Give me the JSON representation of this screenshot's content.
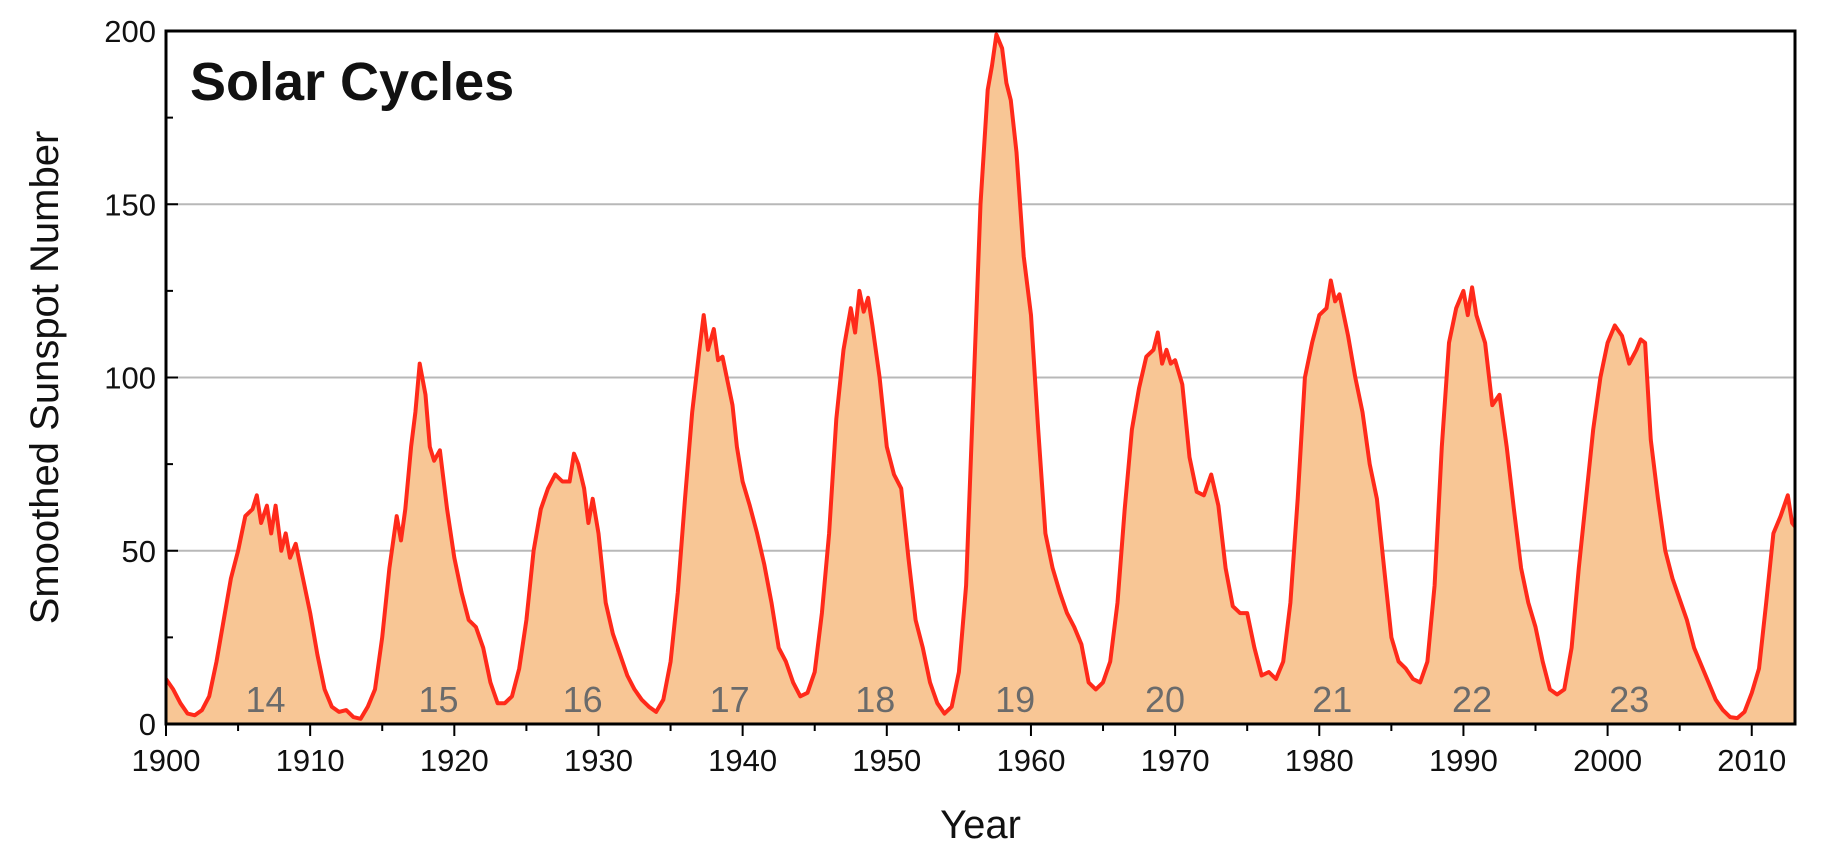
{
  "chart_data": {
    "type": "area",
    "title": "Solar Cycles",
    "xlabel": "Year",
    "ylabel": "Smoothed Sunspot Number",
    "xlim": [
      1900,
      2013
    ],
    "ylim": [
      0,
      200
    ],
    "x_ticks": [
      1900,
      1910,
      1920,
      1930,
      1940,
      1950,
      1960,
      1970,
      1980,
      1990,
      2000,
      2010
    ],
    "y_ticks": [
      0,
      50,
      100,
      150,
      200
    ],
    "grid": "horizontal",
    "line_color": "#ff2a1a",
    "fill_color": "#f8c695",
    "grid_color": "#b8b8b8",
    "cycle_labels": [
      {
        "label": "14",
        "x": 1906.9
      },
      {
        "label": "15",
        "x": 1918.9
      },
      {
        "label": "16",
        "x": 1928.9
      },
      {
        "label": "17",
        "x": 1939.1
      },
      {
        "label": "18",
        "x": 1949.2
      },
      {
        "label": "19",
        "x": 1958.9
      },
      {
        "label": "20",
        "x": 1969.3
      },
      {
        "label": "21",
        "x": 1980.9
      },
      {
        "label": "22",
        "x": 1990.6
      },
      {
        "label": "23",
        "x": 2001.5
      }
    ],
    "series": [
      {
        "values": [
          [
            1900.0,
            13
          ],
          [
            1900.5,
            10
          ],
          [
            1901.0,
            6
          ],
          [
            1901.5,
            3
          ],
          [
            1902.0,
            2.5
          ],
          [
            1902.5,
            4
          ],
          [
            1903.0,
            8
          ],
          [
            1903.5,
            18
          ],
          [
            1904.0,
            30
          ],
          [
            1904.5,
            42
          ],
          [
            1905.0,
            50
          ],
          [
            1905.5,
            60
          ],
          [
            1906.0,
            62
          ],
          [
            1906.3,
            66
          ],
          [
            1906.6,
            58
          ],
          [
            1907.0,
            63
          ],
          [
            1907.3,
            55
          ],
          [
            1907.6,
            63
          ],
          [
            1908.0,
            50
          ],
          [
            1908.3,
            55
          ],
          [
            1908.6,
            48
          ],
          [
            1909.0,
            52
          ],
          [
            1909.5,
            42
          ],
          [
            1910.0,
            32
          ],
          [
            1910.5,
            20
          ],
          [
            1911.0,
            10
          ],
          [
            1911.5,
            5
          ],
          [
            1912.0,
            3.5
          ],
          [
            1912.5,
            4
          ],
          [
            1913.0,
            2
          ],
          [
            1913.5,
            1.5
          ],
          [
            1914.0,
            5
          ],
          [
            1914.5,
            10
          ],
          [
            1915.0,
            25
          ],
          [
            1915.5,
            45
          ],
          [
            1916.0,
            60
          ],
          [
            1916.3,
            53
          ],
          [
            1916.6,
            62
          ],
          [
            1917.0,
            80
          ],
          [
            1917.3,
            90
          ],
          [
            1917.6,
            104
          ],
          [
            1918.0,
            95
          ],
          [
            1918.3,
            80
          ],
          [
            1918.6,
            76
          ],
          [
            1919.0,
            79
          ],
          [
            1919.5,
            62
          ],
          [
            1920.0,
            48
          ],
          [
            1920.5,
            38
          ],
          [
            1921.0,
            30
          ],
          [
            1921.5,
            28
          ],
          [
            1922.0,
            22
          ],
          [
            1922.5,
            12
          ],
          [
            1923.0,
            6
          ],
          [
            1923.5,
            6
          ],
          [
            1924.0,
            8
          ],
          [
            1924.5,
            16
          ],
          [
            1925.0,
            30
          ],
          [
            1925.5,
            50
          ],
          [
            1926.0,
            62
          ],
          [
            1926.5,
            68
          ],
          [
            1927.0,
            72
          ],
          [
            1927.5,
            70
          ],
          [
            1928.0,
            70
          ],
          [
            1928.3,
            78
          ],
          [
            1928.6,
            75
          ],
          [
            1929.0,
            68
          ],
          [
            1929.3,
            58
          ],
          [
            1929.6,
            65
          ],
          [
            1930.0,
            55
          ],
          [
            1930.5,
            35
          ],
          [
            1931.0,
            26
          ],
          [
            1931.5,
            20
          ],
          [
            1932.0,
            14
          ],
          [
            1932.5,
            10
          ],
          [
            1933.0,
            7
          ],
          [
            1933.5,
            5
          ],
          [
            1934.0,
            3.5
          ],
          [
            1934.5,
            7
          ],
          [
            1935.0,
            18
          ],
          [
            1935.5,
            38
          ],
          [
            1936.0,
            65
          ],
          [
            1936.5,
            90
          ],
          [
            1937.0,
            108
          ],
          [
            1937.3,
            118
          ],
          [
            1937.6,
            108
          ],
          [
            1938.0,
            114
          ],
          [
            1938.3,
            105
          ],
          [
            1938.6,
            106
          ],
          [
            1939.0,
            98
          ],
          [
            1939.3,
            92
          ],
          [
            1939.6,
            80
          ],
          [
            1940.0,
            70
          ],
          [
            1940.5,
            63
          ],
          [
            1941.0,
            55
          ],
          [
            1941.5,
            46
          ],
          [
            1942.0,
            35
          ],
          [
            1942.5,
            22
          ],
          [
            1943.0,
            18
          ],
          [
            1943.5,
            12
          ],
          [
            1944.0,
            8
          ],
          [
            1944.5,
            9
          ],
          [
            1945.0,
            15
          ],
          [
            1945.5,
            32
          ],
          [
            1946.0,
            55
          ],
          [
            1946.5,
            88
          ],
          [
            1947.0,
            108
          ],
          [
            1947.5,
            120
          ],
          [
            1947.8,
            113
          ],
          [
            1948.1,
            125
          ],
          [
            1948.4,
            119
          ],
          [
            1948.7,
            123
          ],
          [
            1949.0,
            115
          ],
          [
            1949.5,
            100
          ],
          [
            1950.0,
            80
          ],
          [
            1950.5,
            72
          ],
          [
            1951.0,
            68
          ],
          [
            1951.5,
            48
          ],
          [
            1952.0,
            30
          ],
          [
            1952.5,
            22
          ],
          [
            1953.0,
            12
          ],
          [
            1953.5,
            6
          ],
          [
            1954.0,
            3
          ],
          [
            1954.5,
            5
          ],
          [
            1955.0,
            15
          ],
          [
            1955.5,
            40
          ],
          [
            1956.0,
            95
          ],
          [
            1956.5,
            150
          ],
          [
            1957.0,
            183
          ],
          [
            1957.3,
            190
          ],
          [
            1957.6,
            199
          ],
          [
            1958.0,
            195
          ],
          [
            1958.3,
            185
          ],
          [
            1958.6,
            180
          ],
          [
            1959.0,
            165
          ],
          [
            1959.5,
            135
          ],
          [
            1960.0,
            118
          ],
          [
            1960.5,
            85
          ],
          [
            1961.0,
            55
          ],
          [
            1961.5,
            45
          ],
          [
            1962.0,
            38
          ],
          [
            1962.5,
            32
          ],
          [
            1963.0,
            28
          ],
          [
            1963.5,
            23
          ],
          [
            1964.0,
            12
          ],
          [
            1964.5,
            10
          ],
          [
            1965.0,
            12
          ],
          [
            1965.5,
            18
          ],
          [
            1966.0,
            35
          ],
          [
            1966.5,
            62
          ],
          [
            1967.0,
            85
          ],
          [
            1967.5,
            97
          ],
          [
            1968.0,
            106
          ],
          [
            1968.5,
            108
          ],
          [
            1968.8,
            113
          ],
          [
            1969.1,
            104
          ],
          [
            1969.4,
            108
          ],
          [
            1969.7,
            104
          ],
          [
            1970.0,
            105
          ],
          [
            1970.5,
            98
          ],
          [
            1971.0,
            77
          ],
          [
            1971.5,
            67
          ],
          [
            1972.0,
            66
          ],
          [
            1972.5,
            72
          ],
          [
            1973.0,
            63
          ],
          [
            1973.5,
            45
          ],
          [
            1974.0,
            34
          ],
          [
            1974.5,
            32
          ],
          [
            1975.0,
            32
          ],
          [
            1975.5,
            22
          ],
          [
            1976.0,
            14
          ],
          [
            1976.5,
            15
          ],
          [
            1977.0,
            13
          ],
          [
            1977.5,
            18
          ],
          [
            1978.0,
            35
          ],
          [
            1978.5,
            65
          ],
          [
            1979.0,
            100
          ],
          [
            1979.5,
            110
          ],
          [
            1980.0,
            118
          ],
          [
            1980.5,
            120
          ],
          [
            1980.8,
            128
          ],
          [
            1981.1,
            122
          ],
          [
            1981.4,
            124
          ],
          [
            1981.7,
            118
          ],
          [
            1982.0,
            112
          ],
          [
            1982.5,
            100
          ],
          [
            1983.0,
            90
          ],
          [
            1983.5,
            75
          ],
          [
            1984.0,
            65
          ],
          [
            1984.5,
            45
          ],
          [
            1985.0,
            25
          ],
          [
            1985.5,
            18
          ],
          [
            1986.0,
            16
          ],
          [
            1986.5,
            13
          ],
          [
            1987.0,
            12
          ],
          [
            1987.5,
            18
          ],
          [
            1988.0,
            40
          ],
          [
            1988.5,
            80
          ],
          [
            1989.0,
            110
          ],
          [
            1989.5,
            120
          ],
          [
            1990.0,
            125
          ],
          [
            1990.3,
            118
          ],
          [
            1990.6,
            126
          ],
          [
            1990.9,
            118
          ],
          [
            1991.2,
            114
          ],
          [
            1991.5,
            110
          ],
          [
            1992.0,
            92
          ],
          [
            1992.5,
            95
          ],
          [
            1993.0,
            80
          ],
          [
            1993.5,
            62
          ],
          [
            1994.0,
            45
          ],
          [
            1994.5,
            35
          ],
          [
            1995.0,
            28
          ],
          [
            1995.5,
            18
          ],
          [
            1996.0,
            10
          ],
          [
            1996.5,
            8.5
          ],
          [
            1997.0,
            10
          ],
          [
            1997.5,
            22
          ],
          [
            1998.0,
            45
          ],
          [
            1998.5,
            65
          ],
          [
            1999.0,
            85
          ],
          [
            1999.5,
            100
          ],
          [
            2000.0,
            110
          ],
          [
            2000.5,
            115
          ],
          [
            2001.0,
            112
          ],
          [
            2001.5,
            104
          ],
          [
            2002.0,
            108
          ],
          [
            2002.3,
            111
          ],
          [
            2002.6,
            110
          ],
          [
            2003.0,
            82
          ],
          [
            2003.5,
            65
          ],
          [
            2004.0,
            50
          ],
          [
            2004.5,
            42
          ],
          [
            2005.0,
            36
          ],
          [
            2005.5,
            30
          ],
          [
            2006.0,
            22
          ],
          [
            2006.5,
            17
          ],
          [
            2007.0,
            12
          ],
          [
            2007.5,
            7
          ],
          [
            2008.0,
            4
          ],
          [
            2008.5,
            2
          ],
          [
            2009.0,
            1.7
          ],
          [
            2009.5,
            3.5
          ],
          [
            2010.0,
            9
          ],
          [
            2010.5,
            16
          ],
          [
            2011.0,
            35
          ],
          [
            2011.5,
            55
          ],
          [
            2012.0,
            60
          ],
          [
            2012.5,
            66
          ],
          [
            2012.8,
            58
          ],
          [
            2013.0,
            57
          ]
        ]
      }
    ]
  }
}
